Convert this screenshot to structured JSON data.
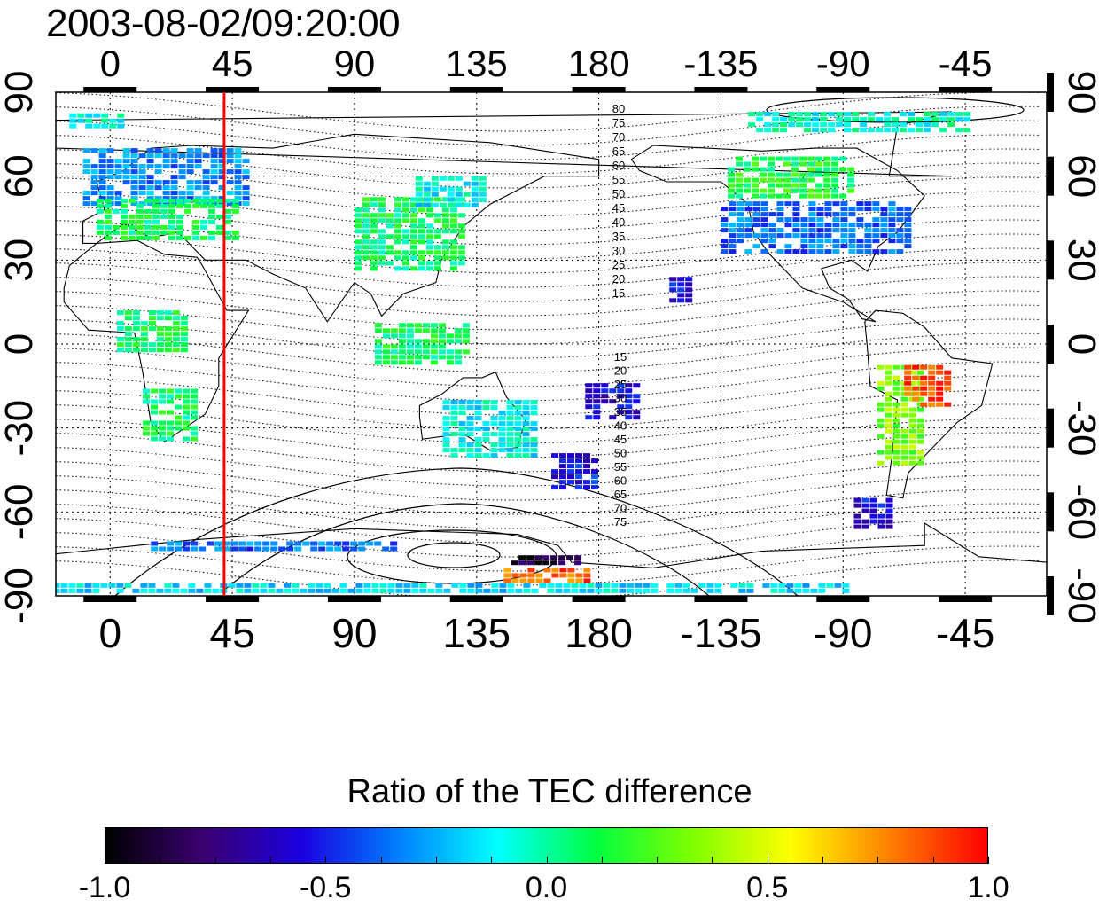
{
  "timestamp": "2003-08-02/09:20:00",
  "chart_data": {
    "type": "heatmap",
    "subtype": "global map",
    "x_axis": {
      "ticks": [
        "0",
        "45",
        "90",
        "135",
        "180",
        "-135",
        "-90",
        "-45"
      ],
      "positions": [
        0,
        45,
        90,
        135,
        180,
        225,
        270,
        315
      ],
      "range": [
        -20,
        345
      ]
    },
    "y_axis": {
      "ticks": [
        "90",
        "60",
        "30",
        "0",
        "-30",
        "-60",
        "-90"
      ],
      "positions": [
        90,
        60,
        30,
        0,
        -30,
        -60,
        -90
      ],
      "range": [
        -90,
        90
      ]
    },
    "marker_line_longitude": 42,
    "contour_labels_north": [
      "80",
      "75",
      "70",
      "65",
      "60",
      "55",
      "50",
      "45",
      "40",
      "35",
      "30",
      "25",
      "20",
      "15"
    ],
    "contour_labels_south": [
      "15",
      "20",
      "25",
      "30",
      "35",
      "40",
      "45",
      "50",
      "55",
      "60",
      "65",
      "70",
      "75"
    ],
    "colorbar": {
      "title": "Ratio of the TEC difference",
      "ticks": [
        "-1.0",
        "-0.5",
        "0.0",
        "0.5",
        "1.0"
      ],
      "range": [
        -1.0,
        1.0
      ],
      "colormap": [
        "#000000",
        "#3a0070",
        "#1a00e0",
        "#0080ff",
        "#00ffff",
        "#00ff40",
        "#80ff00",
        "#ffff00",
        "#ff8000",
        "#ff0000"
      ]
    },
    "data_patches": [
      {
        "lon": 20,
        "lat": 60,
        "w": 60,
        "h": 20,
        "v": -0.35
      },
      {
        "lon": 20,
        "lat": 45,
        "w": 50,
        "h": 14,
        "v": 0.05
      },
      {
        "lon": -5,
        "lat": 80,
        "w": 20,
        "h": 5,
        "v": -0.1
      },
      {
        "lon": 15,
        "lat": 5,
        "w": 25,
        "h": 14,
        "v": 0.05
      },
      {
        "lon": 22,
        "lat": -25,
        "w": 20,
        "h": 18,
        "v": 0.05
      },
      {
        "lon": 110,
        "lat": 40,
        "w": 40,
        "h": 25,
        "v": 0.05
      },
      {
        "lon": 125,
        "lat": 55,
        "w": 25,
        "h": 10,
        "v": -0.15
      },
      {
        "lon": 115,
        "lat": 0,
        "w": 35,
        "h": 15,
        "v": 0.05
      },
      {
        "lon": 140,
        "lat": -30,
        "w": 35,
        "h": 20,
        "v": -0.15
      },
      {
        "lon": 170,
        "lat": -45,
        "w": 15,
        "h": 12,
        "v": -0.55
      },
      {
        "lon": 185,
        "lat": -20,
        "w": 20,
        "h": 12,
        "v": -0.6
      },
      {
        "lon": 210,
        "lat": 20,
        "w": 8,
        "h": 8,
        "v": -0.6
      },
      {
        "lon": 260,
        "lat": 42,
        "w": 70,
        "h": 18,
        "v": -0.4
      },
      {
        "lon": 250,
        "lat": 60,
        "w": 45,
        "h": 14,
        "v": 0.1
      },
      {
        "lon": 275,
        "lat": 80,
        "w": 80,
        "h": 6,
        "v": -0.1
      },
      {
        "lon": 290,
        "lat": -25,
        "w": 15,
        "h": 35,
        "v": 0.3
      },
      {
        "lon": 300,
        "lat": -15,
        "w": 15,
        "h": 15,
        "v": 0.85
      },
      {
        "lon": 280,
        "lat": -60,
        "w": 12,
        "h": 10,
        "v": -0.6
      },
      {
        "lon": 60,
        "lat": -72,
        "w": 90,
        "h": 3,
        "v": -0.4
      },
      {
        "lon": 160,
        "lat": -82,
        "w": 30,
        "h": 4,
        "v": 0.8
      },
      {
        "lon": 160,
        "lat": -77,
        "w": 25,
        "h": 3,
        "v": -0.9
      },
      {
        "lon": 120,
        "lat": -87,
        "w": 300,
        "h": 3,
        "v": -0.2
      }
    ]
  }
}
